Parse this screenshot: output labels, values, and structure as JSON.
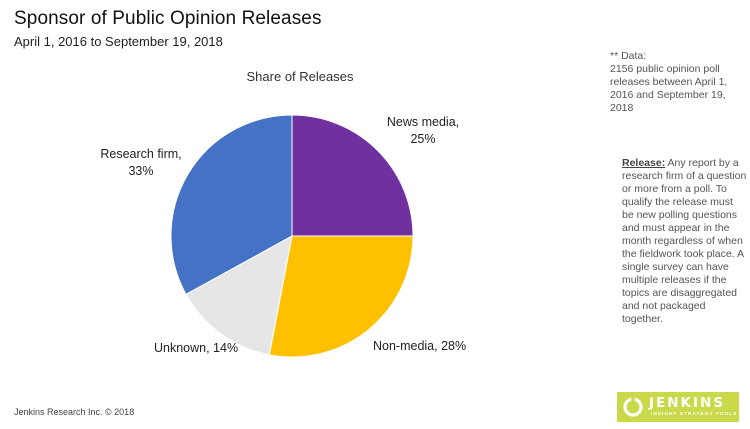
{
  "header": {
    "title": "Sponsor of Public Opinion Releases",
    "subtitle": "April 1, 2016 to September 19, 2018"
  },
  "chart_data": {
    "type": "pie",
    "title": "Share of Releases",
    "slices": [
      {
        "label": "News media",
        "value": 25,
        "display": "25%",
        "color": "#7030a0"
      },
      {
        "label": "Non-media",
        "value": 28,
        "display": "28%",
        "color": "#ffc000"
      },
      {
        "label": "Unknown",
        "value": 14,
        "display": "14%",
        "color": "#e6e6e6"
      },
      {
        "label": "Research firm",
        "value": 33,
        "display": "33%",
        "color": "#4472c4"
      }
    ],
    "start_angle_deg": 0,
    "direction": "clockwise"
  },
  "labels": {
    "news_media": {
      "name": "News media,",
      "pct": "25%"
    },
    "non_media": "Non-media, 28%",
    "unknown": "Unknown, 14%",
    "research_firm": {
      "name": "Research firm,",
      "pct": "33%"
    }
  },
  "notes": {
    "data_note": "** Data:\n2156 public opinion poll releases between April 1, 2016 and September 19, 2018",
    "release_term": "Release:",
    "release_text": " Any report by a research firm of a question or more from a poll. To qualify the release must be new polling questions and must appear in the month regardless of when the fieldwork took place. A single survey can have multiple releases if the topics are disaggregated and not packaged together."
  },
  "footer": {
    "copyright": "Jenkins Research Inc. © 2018"
  },
  "logo": {
    "name": "JENKINS",
    "tagline": "INSIGHT  STRATEGY  TOOLS",
    "color": "#c9d94a"
  }
}
